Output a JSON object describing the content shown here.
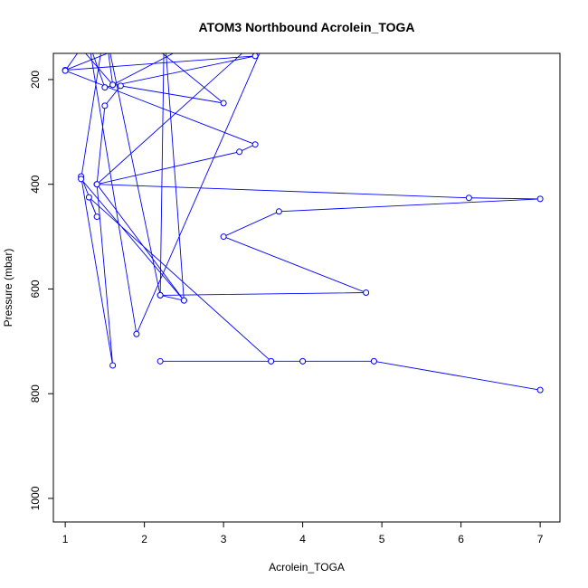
{
  "chart_data": {
    "type": "line",
    "title": "ATOM3 Northbound Acrolein_TOGA",
    "xlabel": "Acrolein_TOGA",
    "ylabel": "Pressure (mbar)",
    "xlim": [
      0.85,
      7.25
    ],
    "ylim": [
      1045,
      150
    ],
    "y_reversed": true,
    "x_ticks": [
      1,
      2,
      3,
      4,
      5,
      6,
      7
    ],
    "y_ticks": [
      200,
      400,
      600,
      800,
      1000
    ],
    "x_tick_labels": [
      "1",
      "2",
      "3",
      "4",
      "5",
      "6",
      "7"
    ],
    "y_tick_labels": [
      "200",
      "400",
      "600",
      "800",
      "1000"
    ],
    "grid": false,
    "series_color": "#0000ff",
    "series": [
      {
        "x": [
          7.0,
          4.9,
          4.0,
          3.6,
          2.2,
          4.9,
          4.0,
          3.6,
          1.3,
          1.4,
          1.2,
          1.6,
          1.4,
          1.5,
          1.7,
          3.0,
          2.0,
          1.0,
          3.4,
          1.5,
          1.3,
          1.9,
          3.6,
          1.4,
          3.2,
          3.4,
          1.0,
          1.2,
          1.6,
          1.5,
          2.2,
          2.5,
          1.4,
          6.1,
          7.0,
          3.7,
          3.0,
          4.8,
          2.2,
          2.25,
          2.5,
          1.2,
          1.5,
          3.0,
          1.6
        ],
        "y": [
          793,
          738,
          738,
          738,
          738,
          738,
          738,
          738,
          425,
          462,
          385,
          746,
          400,
          250,
          212,
          245,
          122,
          182,
          155,
          215,
          130,
          686,
          100,
          400,
          338,
          324,
          183,
          140,
          210,
          100,
          612,
          622,
          400,
          426,
          428,
          452,
          500,
          607,
          612,
          100,
          622,
          390,
          100,
          100,
          210
        ]
      }
    ]
  }
}
